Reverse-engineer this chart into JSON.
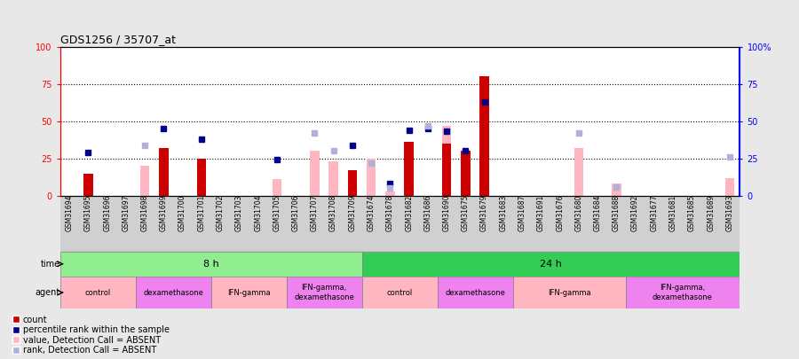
{
  "title": "GDS1256 / 35707_at",
  "samples": [
    "GSM31694",
    "GSM31695",
    "GSM31696",
    "GSM31697",
    "GSM31698",
    "GSM31699",
    "GSM31700",
    "GSM31701",
    "GSM31702",
    "GSM31703",
    "GSM31704",
    "GSM31705",
    "GSM31706",
    "GSM31707",
    "GSM31708",
    "GSM31709",
    "GSM31674",
    "GSM31678",
    "GSM31682",
    "GSM31686",
    "GSM31690",
    "GSM31675",
    "GSM31679",
    "GSM31683",
    "GSM31687",
    "GSM31691",
    "GSM31676",
    "GSM31680",
    "GSM31684",
    "GSM31688",
    "GSM31692",
    "GSM31677",
    "GSM31681",
    "GSM31685",
    "GSM31689",
    "GSM31693"
  ],
  "count": [
    0,
    15,
    0,
    0,
    0,
    32,
    0,
    25,
    0,
    0,
    0,
    0,
    0,
    0,
    0,
    17,
    0,
    0,
    36,
    0,
    35,
    30,
    80,
    0,
    0,
    0,
    0,
    0,
    0,
    0,
    0,
    0,
    0,
    0,
    0,
    0
  ],
  "percentile_rank": [
    0,
    29,
    0,
    0,
    0,
    45,
    0,
    38,
    0,
    0,
    0,
    24,
    0,
    0,
    0,
    34,
    0,
    8,
    44,
    45,
    43,
    30,
    63,
    0,
    0,
    0,
    0,
    0,
    0,
    0,
    0,
    0,
    0,
    0,
    0,
    0
  ],
  "percentile_rank_absent": [
    0,
    0,
    0,
    0,
    34,
    0,
    0,
    0,
    0,
    0,
    0,
    0,
    0,
    42,
    30,
    0,
    22,
    5,
    0,
    47,
    0,
    0,
    0,
    0,
    0,
    0,
    0,
    42,
    0,
    6,
    0,
    0,
    0,
    0,
    0,
    26
  ],
  "value_absent": [
    0,
    0,
    0,
    0,
    20,
    0,
    0,
    0,
    0,
    0,
    0,
    11,
    0,
    30,
    23,
    0,
    25,
    3,
    0,
    0,
    47,
    0,
    0,
    0,
    0,
    0,
    0,
    32,
    0,
    8,
    0,
    0,
    0,
    0,
    0,
    12
  ],
  "time_groups": [
    {
      "label": "8 h",
      "start": 0,
      "end": 16,
      "color": "#90ee90"
    },
    {
      "label": "24 h",
      "start": 16,
      "end": 36,
      "color": "#33cc55"
    }
  ],
  "agent_groups": [
    {
      "label": "control",
      "start": 0,
      "end": 4,
      "color": "#ffb6c1"
    },
    {
      "label": "dexamethasone",
      "start": 4,
      "end": 8,
      "color": "#ee82ee"
    },
    {
      "label": "IFN-gamma",
      "start": 8,
      "end": 12,
      "color": "#ffb6c1"
    },
    {
      "label": "IFN-gamma,\ndexamethasone",
      "start": 12,
      "end": 16,
      "color": "#ee82ee"
    },
    {
      "label": "control",
      "start": 16,
      "end": 20,
      "color": "#ffb6c1"
    },
    {
      "label": "dexamethasone",
      "start": 20,
      "end": 24,
      "color": "#ee82ee"
    },
    {
      "label": "IFN-gamma",
      "start": 24,
      "end": 30,
      "color": "#ffb6c1"
    },
    {
      "label": "IFN-gamma,\ndexamethasone",
      "start": 30,
      "end": 36,
      "color": "#ee82ee"
    }
  ],
  "ylim": [
    0,
    100
  ],
  "yticks": [
    0,
    25,
    50,
    75,
    100
  ],
  "count_color": "#cc0000",
  "prank_color": "#00008b",
  "value_absent_color": "#ffb6c1",
  "prank_absent_color": "#b0b0dd",
  "bg_color": "#e8e8e8",
  "plot_bg": "#ffffff",
  "label_bg": "#d0d0d0"
}
